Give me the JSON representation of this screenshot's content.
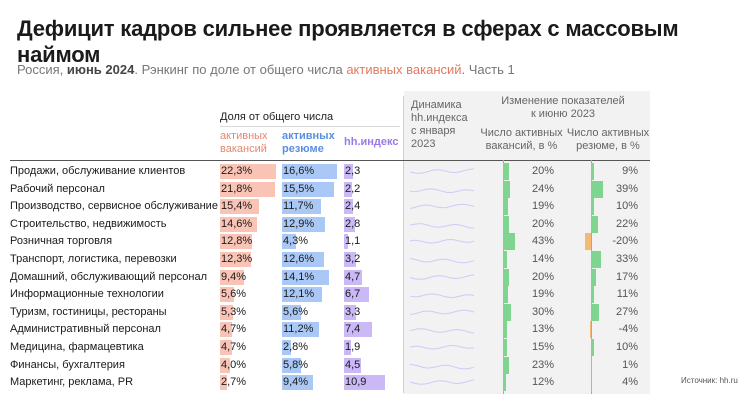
{
  "title": "Дефицит кадров сильнее проявляется в сферах с массовым наймом",
  "subtitle": {
    "part1": "Россия, ",
    "part2": "июнь 2024",
    "part3": ". Рэнкинг по доле от общего числа ",
    "part4": "активных вакансий",
    "part5": ". Часть 1"
  },
  "headers": {
    "group": "Доля от общего числа",
    "vac_line1": "активных",
    "vac_line2": "вакансий",
    "res_line1": "активных",
    "res_line2": "резюме",
    "hh": "hh.индекс",
    "dyn_line1": "Динамика",
    "dyn_line2": "hh.индекса",
    "dyn_line3": "с января",
    "dyn_line4": "2023",
    "chg_line1": "Изменение показателей",
    "chg_line2": "к июню 2023",
    "cv_line1": "Число активных",
    "cv_line2": "вакансий, в %",
    "cr_line1": "Число активных",
    "cr_line2": "резюме, в %"
  },
  "colors": {
    "vac": "#f9c3b5",
    "res": "#aac8f5",
    "hh": "#cbb8f6",
    "chg_pos": "#7fd58f",
    "chg_neg": "#f5b971"
  },
  "chart_data": {
    "type": "table",
    "rows": [
      {
        "label": "Продажи, обслуживание клиентов",
        "vac": "22,3%",
        "vac_v": 22.3,
        "res": "16,6%",
        "res_v": 16.6,
        "hh": "2,3",
        "hh_v": 2.3,
        "cv": "20%",
        "cv_v": 20,
        "cr": "9%",
        "cr_v": 9
      },
      {
        "label": "Рабочий персонал",
        "vac": "21,8%",
        "vac_v": 21.8,
        "res": "15,5%",
        "res_v": 15.5,
        "hh": "2,2",
        "hh_v": 2.2,
        "cv": "24%",
        "cv_v": 24,
        "cr": "39%",
        "cr_v": 39
      },
      {
        "label": "Производство, сервисное обслуживание",
        "vac": "15,4%",
        "vac_v": 15.4,
        "res": "11,7%",
        "res_v": 11.7,
        "hh": "2,4",
        "hh_v": 2.4,
        "cv": "19%",
        "cv_v": 19,
        "cr": "10%",
        "cr_v": 10
      },
      {
        "label": "Строительство, недвижимость",
        "vac": "14,6%",
        "vac_v": 14.6,
        "res": "12,9%",
        "res_v": 12.9,
        "hh": "2,8",
        "hh_v": 2.8,
        "cv": "20%",
        "cv_v": 20,
        "cr": "22%",
        "cr_v": 22
      },
      {
        "label": "Розничная торговля",
        "vac": "12,8%",
        "vac_v": 12.8,
        "res": "4,3%",
        "res_v": 4.3,
        "hh": "1,1",
        "hh_v": 1.1,
        "cv": "43%",
        "cv_v": 43,
        "cr": "-20%",
        "cr_v": -20
      },
      {
        "label": "Транспорт, логистика, перевозки",
        "vac": "12,3%",
        "vac_v": 12.3,
        "res": "12,6%",
        "res_v": 12.6,
        "hh": "3,2",
        "hh_v": 3.2,
        "cv": "14%",
        "cv_v": 14,
        "cr": "33%",
        "cr_v": 33
      },
      {
        "label": "Домашний, обслуживающий персонал",
        "vac": "9,4%",
        "vac_v": 9.4,
        "res": "14,1%",
        "res_v": 14.1,
        "hh": "4,7",
        "hh_v": 4.7,
        "cv": "20%",
        "cv_v": 20,
        "cr": "17%",
        "cr_v": 17
      },
      {
        "label": "Информационные технологии",
        "vac": "5,6%",
        "vac_v": 5.6,
        "res": "12,1%",
        "res_v": 12.1,
        "hh": "6,7",
        "hh_v": 6.7,
        "cv": "19%",
        "cv_v": 19,
        "cr": "11%",
        "cr_v": 11
      },
      {
        "label": "Туризм, гостиницы, рестораны",
        "vac": "5,3%",
        "vac_v": 5.3,
        "res": "5,6%",
        "res_v": 5.6,
        "hh": "3,3",
        "hh_v": 3.3,
        "cv": "30%",
        "cv_v": 30,
        "cr": "27%",
        "cr_v": 27
      },
      {
        "label": "Административный персонал",
        "vac": "4,7%",
        "vac_v": 4.7,
        "res": "11,2%",
        "res_v": 11.2,
        "hh": "7,4",
        "hh_v": 7.4,
        "cv": "13%",
        "cv_v": 13,
        "cr": "-4%",
        "cr_v": -4
      },
      {
        "label": "Медицина, фармацевтика",
        "vac": "4,7%",
        "vac_v": 4.7,
        "res": "2,8%",
        "res_v": 2.8,
        "hh": "1,9",
        "hh_v": 1.9,
        "cv": "15%",
        "cv_v": 15,
        "cr": "10%",
        "cr_v": 10
      },
      {
        "label": "Финансы, бухгалтерия",
        "vac": "4,0%",
        "vac_v": 4.0,
        "res": "5,8%",
        "res_v": 5.8,
        "hh": "4,5",
        "hh_v": 4.5,
        "cv": "23%",
        "cv_v": 23,
        "cr": "1%",
        "cr_v": 1
      },
      {
        "label": "Маркетинг, реклама, PR",
        "vac": "2,7%",
        "vac_v": 2.7,
        "res": "9,4%",
        "res_v": 9.4,
        "hh": "10,9",
        "hh_v": 10.9,
        "cv": "12%",
        "cv_v": 12,
        "cr": "4%",
        "cr_v": 4
      }
    ]
  },
  "source": "Источник: hh.ru"
}
